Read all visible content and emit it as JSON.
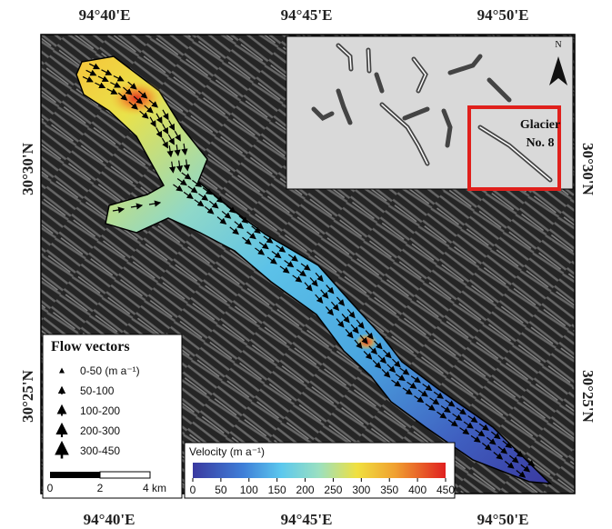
{
  "map": {
    "top_labels": [
      "94°40'E",
      "94°45'E",
      "94°50'E"
    ],
    "bottom_labels": [
      "94°40'E",
      "94°45'E",
      "94°50'E"
    ],
    "left_labels": [
      "30°30'N",
      "30°25'N"
    ],
    "right_labels": [
      "30°30'N",
      "30°25'N"
    ]
  },
  "inset": {
    "north": "N",
    "label_lines": [
      "Glacier",
      "No. 8"
    ]
  },
  "flow_legend": {
    "title": "Flow vectors",
    "items": [
      "0-50  (m a⁻¹)",
      "50-100",
      "100-200",
      "200-300",
      "300-450"
    ]
  },
  "scale_bar": {
    "labels": [
      "0",
      "2",
      "4 km"
    ]
  },
  "colorbar": {
    "title": "Velocity (m a⁻¹)",
    "lim": [
      0,
      450
    ],
    "ticks": [
      0,
      50,
      100,
      150,
      200,
      250,
      300,
      350,
      400,
      450
    ]
  }
}
